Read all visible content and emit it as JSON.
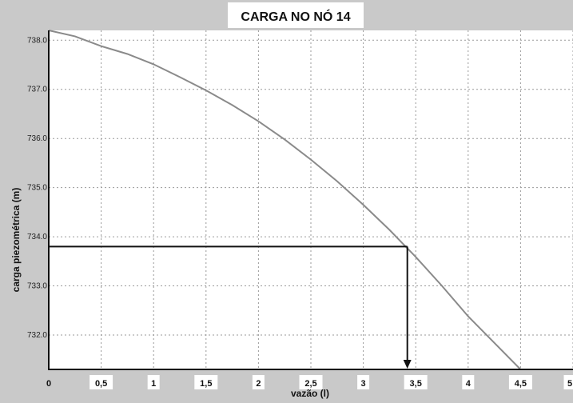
{
  "chart_data": {
    "type": "line",
    "title": "CARGA NO NÓ 14",
    "xlabel": "vazão (l)",
    "ylabel": "carga piezométrica (m)",
    "xlim": [
      0,
      5
    ],
    "ylim": [
      731.3,
      738.2
    ],
    "x_ticks": [
      0,
      0.5,
      1,
      1.5,
      2,
      2.5,
      3,
      3.5,
      4,
      4.5,
      5
    ],
    "x_tick_labels": [
      "0",
      "0,5",
      "1",
      "1,5",
      "2",
      "2,5",
      "3",
      "3,5",
      "4",
      "4,5",
      "5"
    ],
    "y_ticks": [
      732.0,
      733.0,
      734.0,
      735.0,
      736.0,
      737.0,
      738.0
    ],
    "y_tick_labels": [
      "732.0",
      "733.0",
      "734.0",
      "735.0",
      "736.0",
      "737.0",
      "738.0"
    ],
    "grid": true,
    "series": [
      {
        "color": "#8a8a8a",
        "x": [
          0,
          0.25,
          0.5,
          0.75,
          1,
          1.25,
          1.5,
          1.75,
          2,
          2.25,
          2.5,
          2.75,
          3,
          3.25,
          3.5,
          3.75,
          4,
          4.25,
          4.5
        ],
        "y": [
          738.2,
          738.08,
          737.88,
          737.72,
          737.51,
          737.25,
          736.98,
          736.68,
          736.35,
          735.98,
          735.57,
          735.13,
          734.65,
          734.14,
          733.59,
          733.0,
          732.38,
          731.84,
          731.3
        ]
      }
    ],
    "annotation": {
      "y_value": 733.8,
      "x_value": 3.42,
      "color": "#111111"
    }
  }
}
